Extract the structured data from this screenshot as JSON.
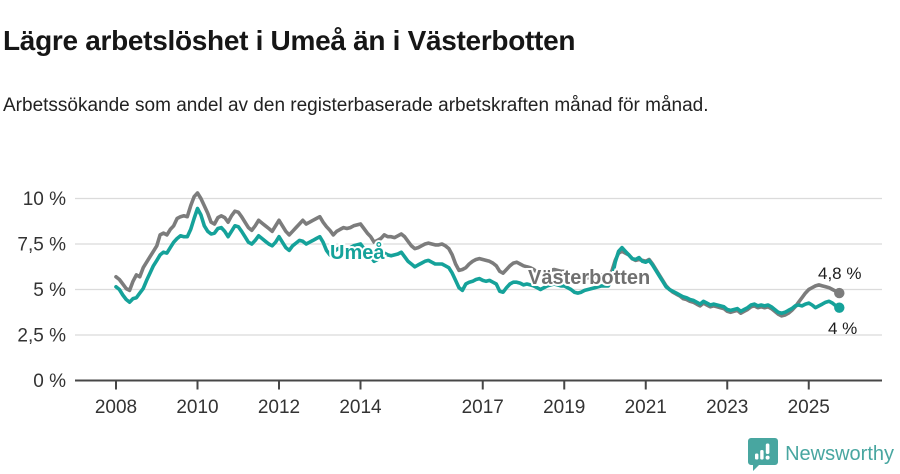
{
  "header": {
    "title": "Lägre arbetslöshet i Umeå än i Västerbotten",
    "subtitle": "Arbetssökande som andel av den registerbaserade arbetskraften månad för månad."
  },
  "footer": {
    "brand": "Newsworthy"
  },
  "colors": {
    "umea_teal": "#15a29a",
    "vasterbotten_gray": "#7c7c7c",
    "grid": "#dbdbdb",
    "axis": "#474747",
    "logo_teal": "#48a6a0"
  },
  "chart_data": {
    "type": "line",
    "title": "Lägre arbetslöshet i Umeå än i Västerbotten",
    "unit": "%",
    "grid": true,
    "legend_position": "inline-labels",
    "x_start_year": 2008,
    "points_per_month": 1,
    "x_end": "2025-10",
    "xlim": [
      2007.6,
      2026.4
    ],
    "ylim": [
      0,
      10.8
    ],
    "x_ticks": [
      "2008",
      "2010",
      "2012",
      "2014",
      "2017",
      "2019",
      "2021",
      "2023",
      "2025"
    ],
    "x_tick_years": [
      2008,
      2010,
      2012,
      2014,
      2017,
      2019,
      2021,
      2023,
      2025
    ],
    "y_ticks": [
      {
        "v": 10,
        "label": "10 %"
      },
      {
        "v": 7.5,
        "label": "7,5 %"
      },
      {
        "v": 5,
        "label": "5 %"
      },
      {
        "v": 2.5,
        "label": "2,5 %"
      },
      {
        "v": 0,
        "label": "0 %"
      }
    ],
    "series": [
      {
        "name": "Västerbotten",
        "color": "#7c7c7c",
        "end_label": "4,8 %",
        "end_value": 4.8,
        "values": [
          5.7,
          5.55,
          5.3,
          5.05,
          4.95,
          5.45,
          5.8,
          5.7,
          6.2,
          6.5,
          6.8,
          7.1,
          7.4,
          8.0,
          8.1,
          8.0,
          8.3,
          8.5,
          8.9,
          9.0,
          9.05,
          9.0,
          9.6,
          10.1,
          10.3,
          10.0,
          9.6,
          9.2,
          8.7,
          8.6,
          8.95,
          9.05,
          8.95,
          8.7,
          9.05,
          9.3,
          9.25,
          9.0,
          8.7,
          8.4,
          8.25,
          8.5,
          8.8,
          8.65,
          8.5,
          8.35,
          8.2,
          8.5,
          8.8,
          8.5,
          8.2,
          8.0,
          8.2,
          8.4,
          8.6,
          8.8,
          8.6,
          8.7,
          8.8,
          8.9,
          9.0,
          8.7,
          8.45,
          8.25,
          8.0,
          8.2,
          8.3,
          8.4,
          8.35,
          8.4,
          8.5,
          8.55,
          8.6,
          8.35,
          8.1,
          7.9,
          7.6,
          7.7,
          7.8,
          8.0,
          7.9,
          7.9,
          7.85,
          7.95,
          8.05,
          7.9,
          7.65,
          7.4,
          7.25,
          7.3,
          7.4,
          7.5,
          7.55,
          7.5,
          7.45,
          7.45,
          7.5,
          7.4,
          7.25,
          6.9,
          6.4,
          6.05,
          6.1,
          6.2,
          6.4,
          6.55,
          6.65,
          6.7,
          6.65,
          6.6,
          6.55,
          6.45,
          6.3,
          6.0,
          5.9,
          6.1,
          6.3,
          6.45,
          6.5,
          6.4,
          6.3,
          6.25,
          6.2,
          6.1,
          5.95,
          5.8,
          5.9,
          6.0,
          6.05,
          6.1,
          6.05,
          6.0,
          6.0,
          5.9,
          5.75,
          5.6,
          5.5,
          5.55,
          5.6,
          5.65,
          5.7,
          5.7,
          5.75,
          5.8,
          5.8,
          5.8,
          6.0,
          6.6,
          7.0,
          7.1,
          7.0,
          6.9,
          6.7,
          6.6,
          6.65,
          6.6,
          6.55,
          6.65,
          6.4,
          6.1,
          5.8,
          5.5,
          5.2,
          5.0,
          4.85,
          4.75,
          4.65,
          4.5,
          4.45,
          4.35,
          4.3,
          4.2,
          4.1,
          4.25,
          4.15,
          4.05,
          4.1,
          4.05,
          4.0,
          3.95,
          3.8,
          3.75,
          3.8,
          3.85,
          3.7,
          3.8,
          3.9,
          4.05,
          4.1,
          4.0,
          4.05,
          4.0,
          4.05,
          3.95,
          3.8,
          3.65,
          3.55,
          3.6,
          3.7,
          3.85,
          4.05,
          4.3,
          4.55,
          4.8,
          5.0,
          5.1,
          5.2,
          5.25,
          5.2,
          5.15,
          5.1,
          5.0,
          4.9,
          4.8
        ]
      },
      {
        "name": "Umeå",
        "color": "#15a29a",
        "end_label": "4 %",
        "end_value": 4.0,
        "values": [
          5.15,
          5.0,
          4.7,
          4.45,
          4.3,
          4.5,
          4.55,
          4.8,
          5.05,
          5.5,
          5.9,
          6.3,
          6.6,
          6.9,
          7.05,
          7.0,
          7.3,
          7.6,
          7.8,
          7.95,
          7.9,
          7.9,
          8.3,
          8.9,
          9.45,
          9.1,
          8.5,
          8.2,
          8.05,
          8.1,
          8.35,
          8.4,
          8.2,
          7.9,
          8.2,
          8.5,
          8.45,
          8.2,
          7.9,
          7.6,
          7.5,
          7.7,
          7.95,
          7.8,
          7.65,
          7.5,
          7.4,
          7.6,
          7.9,
          7.6,
          7.3,
          7.15,
          7.4,
          7.55,
          7.7,
          7.65,
          7.5,
          7.6,
          7.7,
          7.8,
          7.9,
          7.6,
          7.15,
          6.9,
          7.05,
          7.2,
          7.3,
          7.25,
          7.2,
          7.3,
          7.4,
          7.45,
          7.5,
          7.25,
          7.0,
          6.8,
          6.55,
          6.65,
          6.8,
          7.0,
          6.9,
          6.85,
          6.9,
          6.95,
          7.05,
          6.8,
          6.55,
          6.4,
          6.25,
          6.35,
          6.45,
          6.55,
          6.6,
          6.5,
          6.4,
          6.4,
          6.4,
          6.3,
          6.2,
          5.9,
          5.5,
          5.1,
          4.95,
          5.3,
          5.4,
          5.45,
          5.55,
          5.6,
          5.5,
          5.45,
          5.5,
          5.4,
          5.3,
          4.9,
          4.85,
          5.1,
          5.3,
          5.4,
          5.4,
          5.35,
          5.25,
          5.3,
          5.25,
          5.2,
          5.1,
          5.0,
          5.1,
          5.2,
          5.25,
          5.3,
          5.25,
          5.2,
          5.2,
          5.1,
          5.0,
          4.85,
          4.8,
          4.85,
          4.95,
          5.0,
          5.05,
          5.1,
          5.15,
          5.2,
          5.2,
          5.2,
          5.6,
          6.5,
          7.1,
          7.3,
          7.1,
          6.9,
          6.7,
          6.65,
          6.75,
          6.55,
          6.5,
          6.6,
          6.35,
          6.05,
          5.75,
          5.45,
          5.15,
          5.0,
          4.9,
          4.8,
          4.7,
          4.6,
          4.55,
          4.45,
          4.4,
          4.3,
          4.2,
          4.35,
          4.25,
          4.15,
          4.2,
          4.15,
          4.1,
          4.05,
          3.9,
          3.85,
          3.9,
          3.95,
          3.8,
          3.9,
          4.0,
          4.15,
          4.2,
          4.1,
          4.15,
          4.1,
          4.15,
          4.05,
          3.9,
          3.75,
          3.7,
          3.75,
          3.85,
          3.95,
          4.1,
          4.15,
          4.1,
          4.2,
          4.25,
          4.15,
          4.0,
          4.1,
          4.2,
          4.3,
          4.35,
          4.25,
          4.1,
          4.0
        ]
      }
    ]
  }
}
